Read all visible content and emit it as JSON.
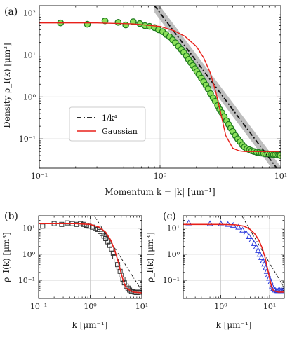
{
  "colors": {
    "gaussian": "#e8201a",
    "power_law": "#111111",
    "band": "#a8a8a8",
    "green_fill": "#8ce15a",
    "green_edge": "#1f7a1f",
    "grid": "#c8c8c8",
    "square_edge": "#333333",
    "triangle_edge": "#2d3cdc"
  },
  "chart_data": [
    {
      "panel": "(a)",
      "type": "scatter",
      "xscale": "log",
      "yscale": "log",
      "xlim": [
        0.1,
        10
      ],
      "ylim": [
        0.02,
        150
      ],
      "xlabel": "Momentum k = |k| [μm⁻¹]",
      "ylabel": "Density ρ_I(k) [μm³]",
      "xtick_labels": [
        "10⁻¹",
        "10⁰",
        "10¹"
      ],
      "ytick_labels": [
        "10⁻¹",
        "10⁰",
        "10¹",
        "10²"
      ],
      "grid": true,
      "legend": {
        "placement": "lower-left",
        "entries": [
          "1/k⁴",
          "Gaussian"
        ]
      },
      "series": [
        {
          "name": "data",
          "marker": "circle",
          "x": [
            0.15,
            0.25,
            0.35,
            0.45,
            0.52,
            0.6,
            0.68,
            0.75,
            0.82,
            0.9,
            0.97,
            1.05,
            1.12,
            1.2,
            1.27,
            1.34,
            1.42,
            1.5,
            1.57,
            1.65,
            1.72,
            1.8,
            1.87,
            1.95,
            2.02,
            2.1,
            2.2,
            2.3,
            2.4,
            2.5,
            2.62,
            2.75,
            2.87,
            3.0,
            3.12,
            3.25,
            3.4,
            3.55,
            3.7,
            3.85,
            4.0,
            4.2,
            4.4,
            4.6,
            4.8,
            5.0,
            5.25,
            5.5,
            5.75,
            6.0,
            6.3,
            6.6,
            6.9,
            7.2,
            7.5,
            7.8,
            8.1,
            8.4,
            8.7,
            9.0,
            9.3,
            9.6,
            9.9
          ],
          "y": [
            58,
            54,
            65,
            60,
            52,
            62,
            56,
            50,
            48,
            45,
            40,
            36,
            31,
            27,
            23,
            19.5,
            16,
            13.5,
            11.5,
            9.5,
            7.8,
            6.5,
            5.6,
            4.7,
            4.0,
            3.4,
            2.8,
            2.3,
            1.9,
            1.55,
            1.2,
            0.95,
            0.78,
            0.62,
            0.5,
            0.42,
            0.34,
            0.27,
            0.22,
            0.18,
            0.15,
            0.12,
            0.1,
            0.085,
            0.072,
            0.064,
            0.058,
            0.055,
            0.052,
            0.05,
            0.048,
            0.047,
            0.046,
            0.045,
            0.044,
            0.044,
            0.043,
            0.043,
            0.042,
            0.042,
            0.041,
            0.041,
            0.04
          ]
        },
        {
          "name": "1/k⁴",
          "type": "line",
          "style": "dash-dot",
          "x": [
            0.9,
            10
          ],
          "y": [
            150,
            0.015
          ]
        },
        {
          "name": "Gaussian",
          "type": "line",
          "x": [
            0.1,
            0.3,
            0.6,
            1.0,
            1.3,
            1.6,
            2.0,
            2.3,
            2.6,
            2.9,
            3.2,
            3.5,
            4.0,
            4.5,
            5.0,
            7.0,
            10.0
          ],
          "y": [
            58,
            58,
            55,
            48,
            38,
            28,
            16,
            8.5,
            3.8,
            1.3,
            0.38,
            0.12,
            0.06,
            0.052,
            0.05,
            0.05,
            0.05
          ]
        }
      ]
    },
    {
      "panel": "(b)",
      "type": "scatter",
      "xscale": "log",
      "yscale": "log",
      "xlim": [
        0.1,
        10
      ],
      "ylim": [
        0.02,
        30
      ],
      "xlabel": "k [μm⁻¹]",
      "ylabel": "ρ_I(k) [μm³]",
      "xtick_labels": [
        "10⁻¹",
        "10⁰",
        "10¹"
      ],
      "ytick_labels": [
        "10⁻¹",
        "10⁰",
        "10¹"
      ],
      "grid": true,
      "series": [
        {
          "name": "data",
          "marker": "square",
          "x": [
            0.12,
            0.2,
            0.28,
            0.36,
            0.45,
            0.55,
            0.65,
            0.75,
            0.85,
            0.95,
            1.1,
            1.25,
            1.4,
            1.55,
            1.7,
            1.85,
            2.0,
            2.2,
            2.4,
            2.6,
            2.8,
            3.0,
            3.2,
            3.4,
            3.6,
            3.8,
            4.0,
            4.3,
            4.6,
            5.0,
            5.4,
            5.8,
            6.3,
            6.8,
            7.3,
            7.8,
            8.3,
            8.8,
            9.3
          ],
          "y": [
            12,
            15,
            14,
            16,
            15,
            14,
            15,
            14,
            13,
            12,
            11,
            10,
            9,
            7.5,
            6.3,
            5.0,
            4.0,
            3.0,
            2.2,
            1.6,
            1.1,
            0.8,
            0.55,
            0.4,
            0.3,
            0.22,
            0.16,
            0.11,
            0.08,
            0.06,
            0.05,
            0.042,
            0.038,
            0.036,
            0.035,
            0.034,
            0.034,
            0.035,
            0.035
          ]
        },
        {
          "name": "1/k⁴",
          "type": "line",
          "style": "dash-dot",
          "x": [
            1.2,
            10
          ],
          "y": [
            30,
            0.04
          ]
        },
        {
          "name": "Gaussian",
          "type": "line",
          "x": [
            0.1,
            0.5,
            1.0,
            1.5,
            2.0,
            2.5,
            3.0,
            3.5,
            4.0,
            4.5,
            5.0,
            6.0,
            7.0,
            10.0
          ],
          "y": [
            15,
            15,
            14,
            11,
            7,
            3.5,
            1.4,
            0.5,
            0.18,
            0.08,
            0.05,
            0.04,
            0.035,
            0.033
          ]
        }
      ]
    },
    {
      "panel": "(c)",
      "type": "scatter",
      "xscale": "log",
      "yscale": "log",
      "xlim": [
        0.17,
        20
      ],
      "ylim": [
        0.02,
        30
      ],
      "xlabel": "k [μm⁻¹]",
      "ylabel": "ρ_I(k) [μm³]",
      "xtick_labels": [
        "10⁰",
        "10¹"
      ],
      "ytick_labels": [
        "10⁻¹",
        "10⁰",
        "10¹"
      ],
      "grid": true,
      "series": [
        {
          "name": "data",
          "marker": "triangle",
          "x": [
            0.22,
            0.6,
            1.0,
            1.4,
            1.8,
            2.3,
            2.8,
            3.3,
            3.8,
            4.3,
            4.8,
            5.3,
            5.8,
            6.3,
            6.8,
            7.3,
            7.8,
            8.3,
            8.8,
            9.3,
            9.8,
            10.5,
            11.2,
            12,
            13,
            14,
            15,
            16,
            17,
            18,
            19
          ],
          "y": [
            16,
            15,
            15,
            14,
            13,
            11,
            8.5,
            6.5,
            4.8,
            3.5,
            2.6,
            1.9,
            1.4,
            1.0,
            0.75,
            0.55,
            0.42,
            0.3,
            0.22,
            0.16,
            0.12,
            0.085,
            0.06,
            0.048,
            0.042,
            0.04,
            0.04,
            0.041,
            0.04,
            0.04,
            0.04
          ]
        },
        {
          "name": "1/k⁴",
          "type": "line",
          "style": "dash-dot",
          "x": [
            2.7,
            20
          ],
          "y": [
            30,
            0.05
          ]
        },
        {
          "name": "Gaussian",
          "type": "line",
          "x": [
            0.17,
            1.0,
            2.0,
            3.0,
            4.0,
            5.0,
            6.0,
            7.0,
            8.0,
            9.0,
            10.0,
            11.0,
            12.0,
            15.0,
            20.0
          ],
          "y": [
            14,
            14,
            13.5,
            12,
            9,
            6,
            3.5,
            1.8,
            0.8,
            0.3,
            0.12,
            0.055,
            0.04,
            0.035,
            0.035
          ]
        }
      ]
    }
  ]
}
